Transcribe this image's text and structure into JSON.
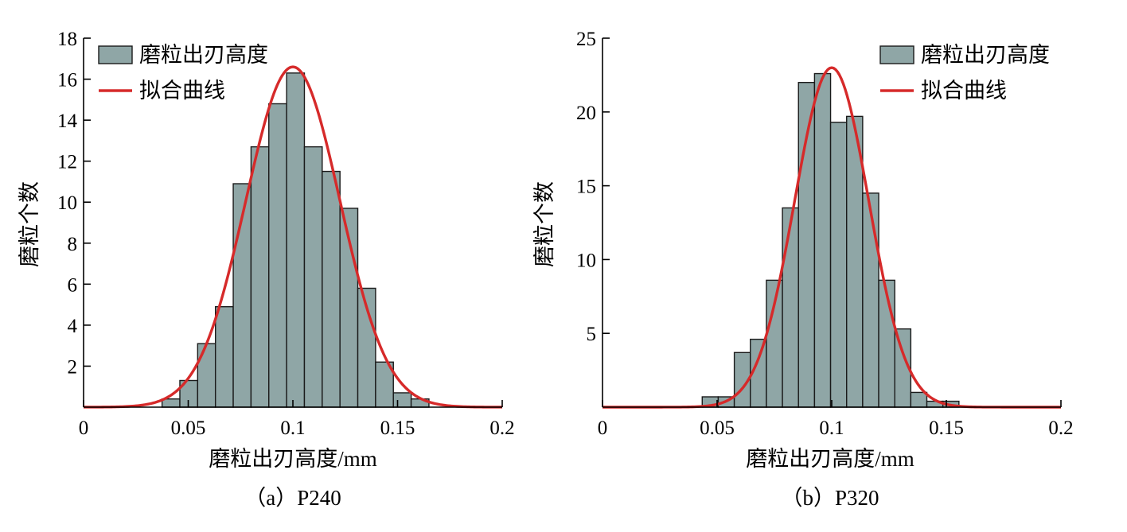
{
  "colors": {
    "bar_fill": "#8fa6a6",
    "bar_edge": "#1a1a1a",
    "curve": "#d62a2a"
  },
  "chart_data": [
    {
      "type": "bar",
      "caption": "（a）P240",
      "xlabel": "磨粒出刃高度/mm",
      "ylabel": "磨粒个数",
      "xlim": [
        0,
        0.2
      ],
      "ylim": [
        0,
        18
      ],
      "xticks": [
        {
          "value": 0,
          "label": "0"
        },
        {
          "value": 0.05,
          "label": "0.05"
        },
        {
          "value": 0.1,
          "label": "0.1"
        },
        {
          "value": 0.15,
          "label": "0.15"
        },
        {
          "value": 0.2,
          "label": "0.2"
        }
      ],
      "yticks": [
        {
          "value": 2,
          "label": "2"
        },
        {
          "value": 4,
          "label": "4"
        },
        {
          "value": 6,
          "label": "6"
        },
        {
          "value": 8,
          "label": "8"
        },
        {
          "value": 10,
          "label": "10"
        },
        {
          "value": 12,
          "label": "12"
        },
        {
          "value": 14,
          "label": "14"
        },
        {
          "value": 16,
          "label": "16"
        },
        {
          "value": 18,
          "label": "18"
        }
      ],
      "bin_width": 0.0085,
      "bins": [
        {
          "start": 0.0375,
          "value": 0.4
        },
        {
          "start": 0.046,
          "value": 1.3
        },
        {
          "start": 0.0545,
          "value": 3.1
        },
        {
          "start": 0.063,
          "value": 4.9
        },
        {
          "start": 0.0715,
          "value": 10.9
        },
        {
          "start": 0.08,
          "value": 12.7
        },
        {
          "start": 0.0885,
          "value": 14.8
        },
        {
          "start": 0.097,
          "value": 16.3
        },
        {
          "start": 0.1055,
          "value": 12.7
        },
        {
          "start": 0.114,
          "value": 11.5
        },
        {
          "start": 0.1225,
          "value": 9.7
        },
        {
          "start": 0.131,
          "value": 5.8
        },
        {
          "start": 0.1395,
          "value": 2.2
        },
        {
          "start": 0.148,
          "value": 0.7
        },
        {
          "start": 0.1565,
          "value": 0.4
        }
      ],
      "fit": {
        "mean": 0.1,
        "sd": 0.0225,
        "peak": 16.6
      },
      "legend": {
        "position": "top-left",
        "bar_label": "磨粒出刃高度",
        "line_label": "拟合曲线"
      }
    },
    {
      "type": "bar",
      "caption": "（b）P320",
      "xlabel": "磨粒出刃高度/mm",
      "ylabel": "磨粒个数",
      "xlim": [
        0,
        0.2
      ],
      "ylim": [
        0,
        25
      ],
      "xticks": [
        {
          "value": 0,
          "label": "0"
        },
        {
          "value": 0.05,
          "label": "0.05"
        },
        {
          "value": 0.1,
          "label": "0.1"
        },
        {
          "value": 0.15,
          "label": "0.15"
        },
        {
          "value": 0.2,
          "label": "0.2"
        }
      ],
      "yticks": [
        {
          "value": 5,
          "label": "5"
        },
        {
          "value": 10,
          "label": "10"
        },
        {
          "value": 15,
          "label": "15"
        },
        {
          "value": 20,
          "label": "20"
        },
        {
          "value": 25,
          "label": "25"
        }
      ],
      "bin_width": 0.007,
      "bins": [
        {
          "start": 0.0435,
          "value": 0.7
        },
        {
          "start": 0.0505,
          "value": 0.7
        },
        {
          "start": 0.0575,
          "value": 3.7
        },
        {
          "start": 0.0645,
          "value": 4.6
        },
        {
          "start": 0.0715,
          "value": 8.6
        },
        {
          "start": 0.0785,
          "value": 13.5
        },
        {
          "start": 0.0855,
          "value": 22.0
        },
        {
          "start": 0.0925,
          "value": 22.6
        },
        {
          "start": 0.0995,
          "value": 19.3
        },
        {
          "start": 0.1065,
          "value": 19.7
        },
        {
          "start": 0.1135,
          "value": 14.5
        },
        {
          "start": 0.1205,
          "value": 8.6
        },
        {
          "start": 0.1275,
          "value": 5.3
        },
        {
          "start": 0.1345,
          "value": 1.0
        },
        {
          "start": 0.1415,
          "value": 0.4
        },
        {
          "start": 0.1485,
          "value": 0.4
        }
      ],
      "fit": {
        "mean": 0.1,
        "sd": 0.0162,
        "peak": 23.0
      },
      "legend": {
        "position": "top-right",
        "bar_label": "磨粒出刃高度",
        "line_label": "拟合曲线"
      }
    }
  ]
}
